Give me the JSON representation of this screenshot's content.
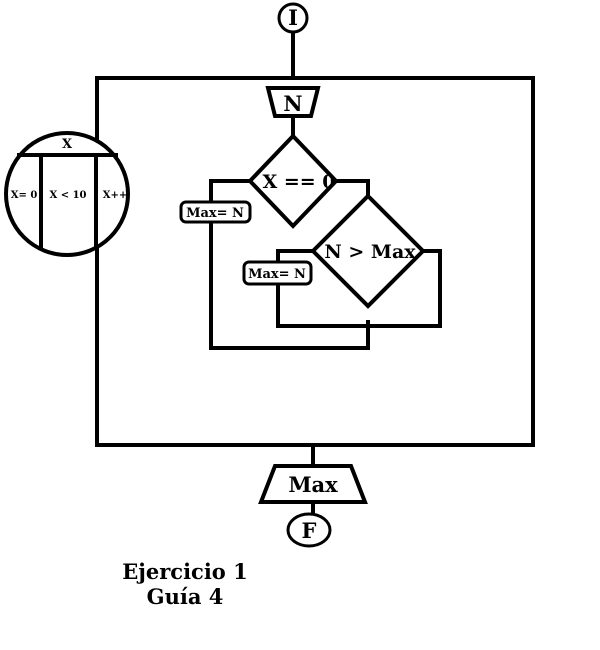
{
  "start_label": "I",
  "end_label": "F",
  "input_label": "N",
  "output_label": "Max",
  "loop": {
    "variable": "X",
    "init": "X= 0",
    "condition": "X < 10",
    "increment": "X++"
  },
  "decision_1": "X == 0",
  "assign_1": "Max= N",
  "decision_2": "N > Max",
  "assign_2": "Max= N",
  "caption_line1": "Ejercicio 1",
  "caption_line2": "Guía 4"
}
